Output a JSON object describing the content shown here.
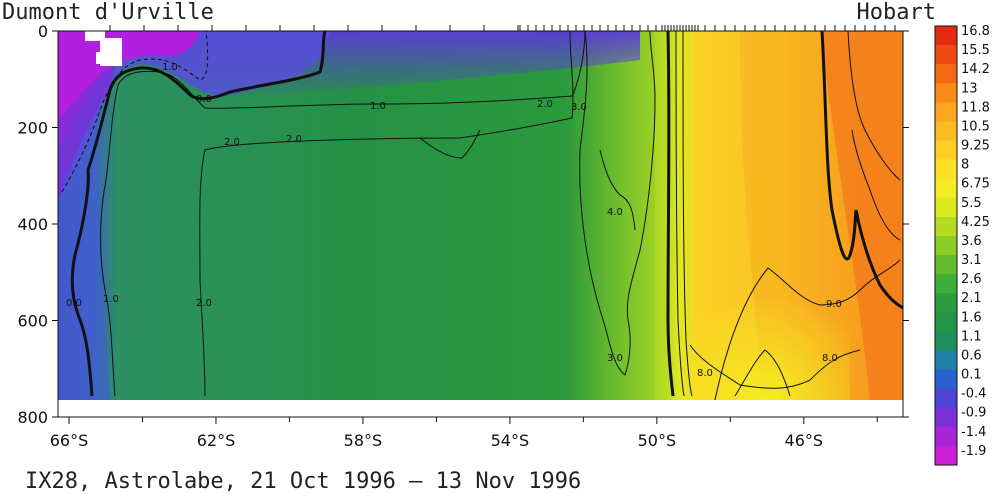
{
  "chart_data": {
    "type": "heatmap",
    "title": "IX28, Astrolabe, 21 Oct 1996 – 13 Nov 1996",
    "left_station": "Dumont d'Urville",
    "right_station": "Hobart",
    "x_ticks": [
      "66°S",
      "62°S",
      "58°S",
      "54°S",
      "50°S",
      "46°S"
    ],
    "x_tick_values": [
      -66,
      -62,
      -58,
      -54,
      -50,
      -46
    ],
    "xlim": [
      -66.3,
      -43.3
    ],
    "y_ticks": [
      "0",
      "200",
      "400",
      "600",
      "800"
    ],
    "y_tick_values": [
      0,
      200,
      400,
      600,
      800
    ],
    "ylim": [
      0,
      800
    ],
    "y_reversed": true,
    "data_depth_max": 760,
    "colorbar_labels": [
      "16.8",
      "15.5",
      "14.2",
      "13",
      "11.8",
      "10.5",
      "9.25",
      "8",
      "6.75",
      "5.5",
      "4.25",
      "3.6",
      "3.1",
      "2.6",
      "2.1",
      "1.6",
      "1.1",
      "0.6",
      "0.1",
      "-0.4",
      "-0.9",
      "-1.4",
      "-1.9"
    ],
    "colorbar_colors": [
      "#e52a12",
      "#ef4a10",
      "#f46a12",
      "#f98b16",
      "#fca51d",
      "#fdbb22",
      "#fece24",
      "#fde126",
      "#f6ec23",
      "#dde921",
      "#b6dc21",
      "#8bcd27",
      "#62bc2e",
      "#3fae38",
      "#2d9c3e",
      "#229443",
      "#1e8f5c",
      "#1f7fa6",
      "#2962cf",
      "#4c45d3",
      "#7b2fd6",
      "#a824d6",
      "#cd1ed7"
    ],
    "contour_labels": [
      "0.0",
      "0.0",
      "1.0",
      "1.0",
      "1.0",
      "2.0",
      "2.0",
      "2.0",
      "2.0",
      "3.0",
      "3.0",
      "4.0",
      "8.0",
      "8.0",
      "9.0"
    ],
    "colors": {
      "frame": "#111111",
      "cold": "#b31fe0",
      "warm": "#f4741b"
    }
  }
}
